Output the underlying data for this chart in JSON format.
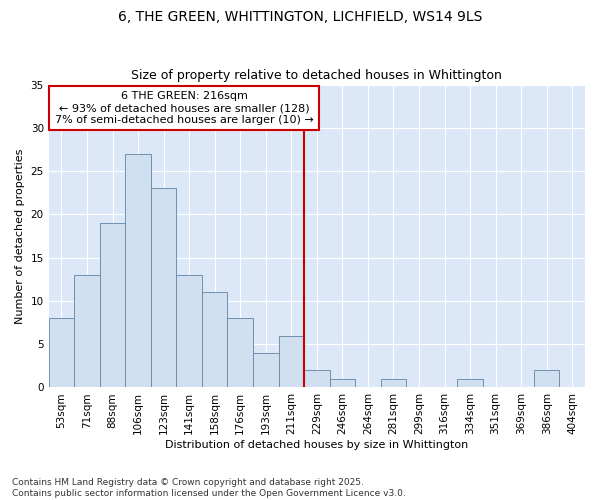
{
  "title1": "6, THE GREEN, WHITTINGTON, LICHFIELD, WS14 9LS",
  "title2": "Size of property relative to detached houses in Whittington",
  "xlabel": "Distribution of detached houses by size in Whittington",
  "ylabel": "Number of detached properties",
  "categories": [
    "53sqm",
    "71sqm",
    "88sqm",
    "106sqm",
    "123sqm",
    "141sqm",
    "158sqm",
    "176sqm",
    "193sqm",
    "211sqm",
    "229sqm",
    "246sqm",
    "264sqm",
    "281sqm",
    "299sqm",
    "316sqm",
    "334sqm",
    "351sqm",
    "369sqm",
    "386sqm",
    "404sqm"
  ],
  "values": [
    8,
    13,
    19,
    27,
    23,
    13,
    11,
    8,
    4,
    6,
    2,
    1,
    0,
    1,
    0,
    0,
    1,
    0,
    0,
    2,
    0
  ],
  "bar_color": "#d0e0f0",
  "bar_edge_color": "#7090b0",
  "vline_x_index": 9.5,
  "vline_color": "#cc0000",
  "annotation_line1": "6 THE GREEN: 216sqm",
  "annotation_line2": "← 93% of detached houses are smaller (128)",
  "annotation_line3": "7% of semi-detached houses are larger (10) →",
  "annotation_box_color": "#cc0000",
  "ylim": [
    0,
    35
  ],
  "yticks": [
    0,
    5,
    10,
    15,
    20,
    25,
    30,
    35
  ],
  "background_color": "#dce8f8",
  "footer": "Contains HM Land Registry data © Crown copyright and database right 2025.\nContains public sector information licensed under the Open Government Licence v3.0.",
  "title_fontsize": 10,
  "subtitle_fontsize": 9,
  "annotation_fontsize": 8,
  "footer_fontsize": 6.5,
  "axis_label_fontsize": 8,
  "tick_fontsize": 7.5
}
